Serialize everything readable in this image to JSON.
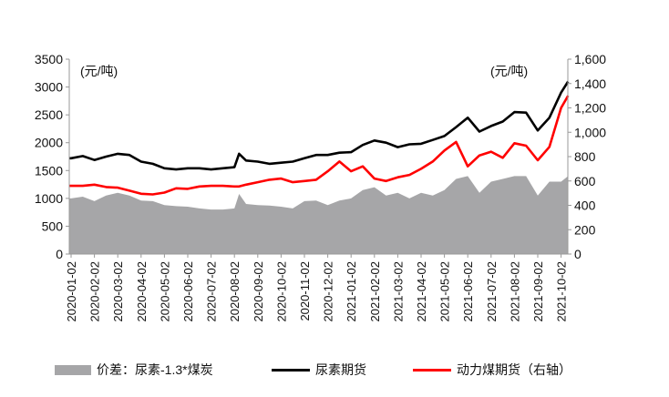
{
  "chart_data": {
    "type": "line",
    "title": "",
    "left_unit": "(元/吨)",
    "right_unit": "(元/吨)",
    "left_ylim": [
      0,
      3500
    ],
    "left_ticks": [
      "0",
      "500",
      "1000",
      "1500",
      "2000",
      "2500",
      "3000",
      "3500"
    ],
    "right_ylim": [
      0,
      1600
    ],
    "right_ticks": [
      "0",
      "200",
      "400",
      "600",
      "800",
      "1,000",
      "1,200",
      "1,400",
      "1,600"
    ],
    "x_tick_labels": [
      "2020-01-02",
      "2020-02-02",
      "2020-03-02",
      "2020-04-02",
      "2020-05-02",
      "2020-06-02",
      "2020-07-02",
      "2020-08-02",
      "2020-09-02",
      "2020-10-02",
      "2020-11-02",
      "2020-12-02",
      "2021-01-02",
      "2021-02-02",
      "2021-03-02",
      "2021-04-02",
      "2021-05-02",
      "2021-06-02",
      "2021-07-02",
      "2021-08-02",
      "2021-09-02",
      "2021-10-02"
    ],
    "x_months_since_2020_01_02": [
      0,
      0.5,
      1,
      1.5,
      2,
      2.5,
      3,
      3.5,
      4,
      4.5,
      5,
      5.5,
      6,
      6.5,
      7,
      7.2,
      7.5,
      8,
      8.5,
      9,
      9.5,
      10,
      10.5,
      11,
      11.5,
      12,
      12.5,
      13,
      13.5,
      14,
      14.5,
      15,
      15.5,
      16,
      16.5,
      17,
      17.5,
      18,
      18.5,
      19,
      19.5,
      20,
      20.5,
      21,
      21.3
    ],
    "series": [
      {
        "name": "价差：尿素-1.3*煤炭",
        "type": "area",
        "axis": "left",
        "color": "#a6a6a8",
        "values": [
          1000,
          1030,
          950,
          1050,
          1100,
          1050,
          960,
          950,
          880,
          860,
          850,
          820,
          800,
          800,
          820,
          1080,
          900,
          880,
          870,
          850,
          820,
          950,
          960,
          880,
          960,
          1000,
          1150,
          1200,
          1050,
          1100,
          1000,
          1100,
          1050,
          1150,
          1350,
          1400,
          1100,
          1300,
          1350,
          1400,
          1400,
          1050,
          1300,
          1300,
          1400
        ]
      },
      {
        "name": "尿素期货",
        "type": "line",
        "axis": "left",
        "color": "#000000",
        "values": [
          1720,
          1760,
          1690,
          1750,
          1800,
          1780,
          1660,
          1620,
          1540,
          1520,
          1540,
          1540,
          1520,
          1540,
          1560,
          1800,
          1680,
          1660,
          1620,
          1640,
          1660,
          1720,
          1780,
          1780,
          1820,
          1830,
          1960,
          2040,
          2000,
          1920,
          1970,
          1980,
          2050,
          2120,
          2280,
          2450,
          2200,
          2300,
          2380,
          2550,
          2540,
          2220,
          2450,
          2900,
          3100
        ]
      },
      {
        "name": "动力煤期货（右轴）",
        "type": "line",
        "axis": "right",
        "color": "#ff0000",
        "values": [
          560,
          560,
          570,
          550,
          545,
          520,
          495,
          490,
          505,
          540,
          535,
          555,
          560,
          560,
          555,
          555,
          570,
          590,
          610,
          620,
          590,
          600,
          610,
          680,
          760,
          680,
          720,
          620,
          600,
          630,
          650,
          700,
          760,
          850,
          920,
          720,
          810,
          840,
          790,
          910,
          890,
          770,
          880,
          1200,
          1300
        ]
      }
    ],
    "legend": [
      "价差：尿素-1.3*煤炭",
      "尿素期货",
      "动力煤期货（右轴）"
    ],
    "legend_position": "bottom",
    "grid": false
  }
}
